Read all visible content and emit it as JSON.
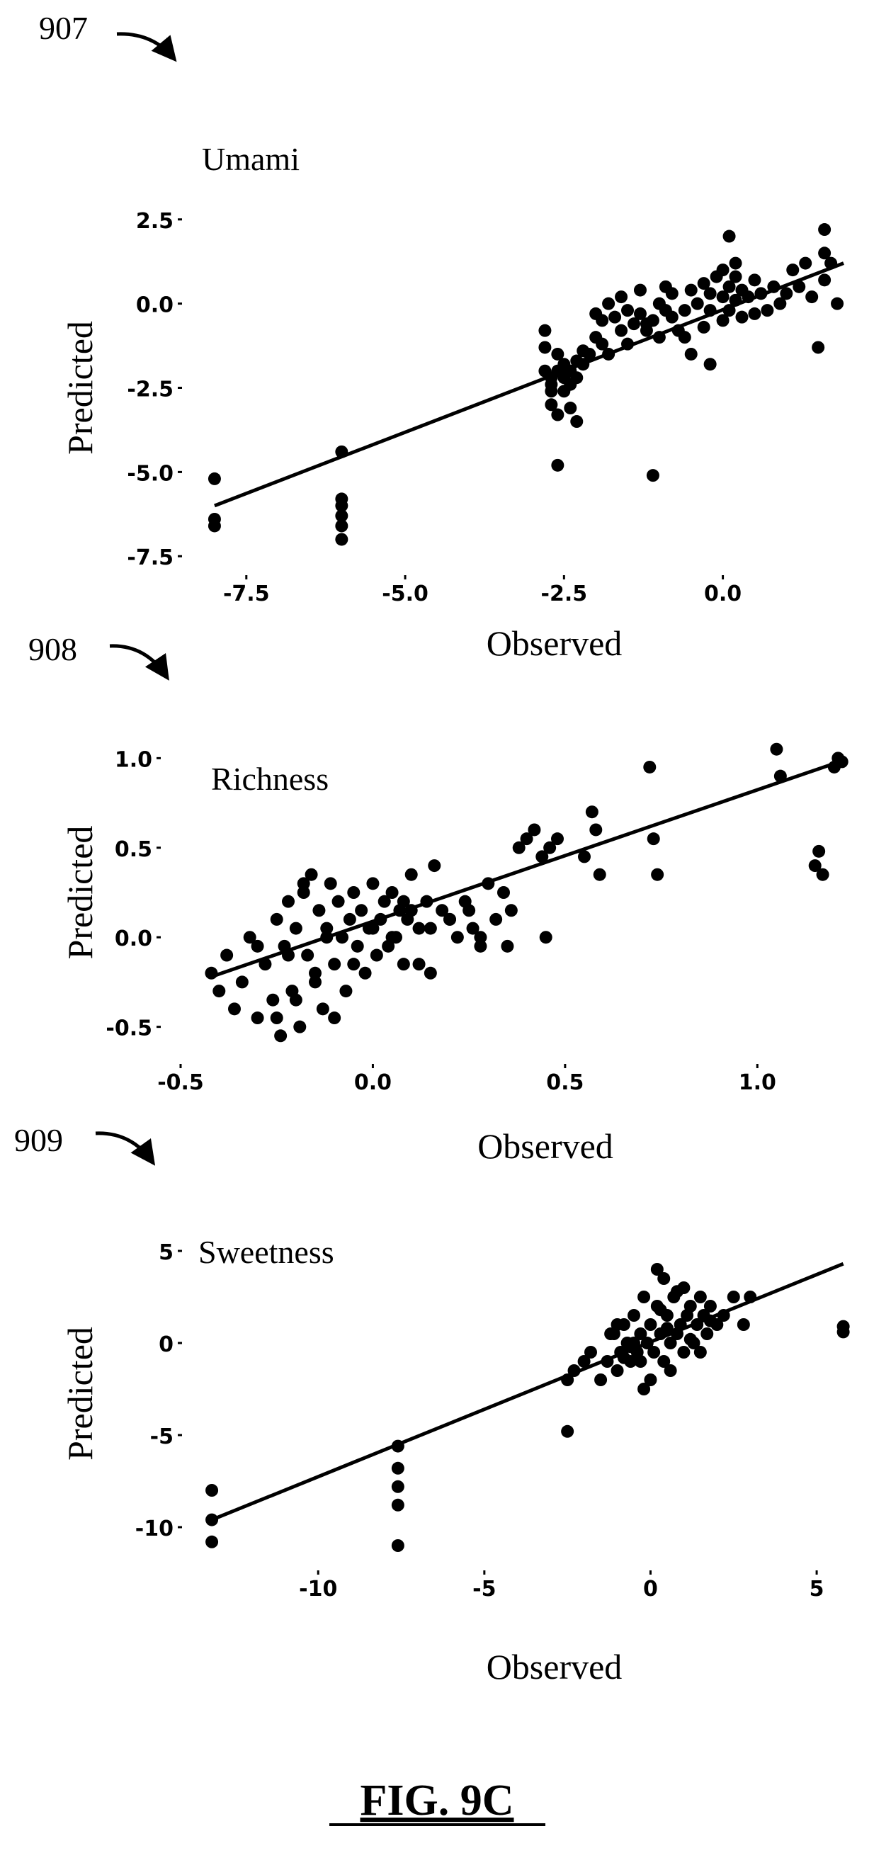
{
  "figure_label": "FIG. 9C",
  "colors": {
    "ink": "#000000",
    "background": "#ffffff"
  },
  "chart_data": [
    {
      "type": "scatter",
      "reference": "907",
      "title": "Umami",
      "xlabel": "Observed",
      "ylabel": "Predicted",
      "xlim": [
        -8.2,
        2.0
      ],
      "ylim": [
        -7.6,
        2.6
      ],
      "xticks": [
        "-7.5",
        "-5.0",
        "-2.5",
        "0.0"
      ],
      "yticks": [
        "2.5",
        "0.0",
        "-2.5",
        "-5.0",
        "-7.5"
      ],
      "xtick_values": [
        -7.5,
        -5.0,
        -2.5,
        0.0
      ],
      "ytick_values": [
        2.5,
        0.0,
        -2.5,
        -5.0,
        -7.5
      ],
      "fit_line": {
        "x": [
          -8.0,
          1.9
        ],
        "y": [
          -6.0,
          1.2
        ]
      },
      "points": {
        "x": [
          -8.0,
          -8.0,
          -8.0,
          -6.0,
          -6.0,
          -6.0,
          -6.0,
          -6.0,
          -6.0,
          -2.8,
          -2.8,
          -2.8,
          -2.7,
          -2.7,
          -2.7,
          -2.7,
          -2.6,
          -2.6,
          -2.6,
          -2.5,
          -2.5,
          -2.5,
          -2.4,
          -2.4,
          -2.3,
          -2.3,
          -2.3,
          -2.2,
          -2.2,
          -2.1,
          -2.0,
          -2.0,
          -1.9,
          -1.9,
          -1.8,
          -1.8,
          -1.7,
          -1.6,
          -1.6,
          -1.5,
          -1.5,
          -1.4,
          -1.3,
          -1.3,
          -1.2,
          -1.1,
          -1.0,
          -1.0,
          -0.9,
          -0.9,
          -0.8,
          -0.8,
          -0.7,
          -0.6,
          -0.5,
          -0.5,
          -0.4,
          -0.3,
          -0.3,
          -0.2,
          -0.2,
          -0.1,
          0.0,
          0.0,
          0.0,
          0.1,
          0.1,
          0.2,
          0.2,
          0.3,
          0.3,
          0.4,
          0.5,
          0.5,
          0.6,
          0.7,
          0.8,
          0.9,
          1.0,
          1.1,
          1.2,
          1.3,
          1.4,
          1.5,
          1.6,
          1.7,
          -2.6,
          -1.1,
          0.1,
          1.6,
          1.6,
          1.8,
          -0.2,
          0.2,
          -1.2,
          -0.6,
          -2.4
        ],
        "y": [
          -5.2,
          -6.4,
          -6.6,
          -4.4,
          -5.8,
          -6.0,
          -6.3,
          -6.6,
          -7.0,
          -0.8,
          -1.3,
          -2.0,
          -2.2,
          -2.4,
          -2.6,
          -3.0,
          -3.3,
          -2.0,
          -1.5,
          -1.8,
          -2.2,
          -2.6,
          -2.4,
          -3.1,
          -1.7,
          -2.2,
          -3.5,
          -1.4,
          -1.8,
          -1.5,
          -1.0,
          -0.3,
          -1.2,
          -0.5,
          0.0,
          -1.5,
          -0.4,
          -0.8,
          0.2,
          -1.2,
          -0.2,
          -0.6,
          -0.3,
          0.4,
          -0.8,
          -0.5,
          0.0,
          -1.0,
          -0.2,
          0.5,
          -0.4,
          0.3,
          -0.8,
          -0.2,
          0.4,
          -1.5,
          0.0,
          -0.7,
          0.6,
          -0.2,
          0.3,
          0.8,
          -0.5,
          0.2,
          1.0,
          0.5,
          -0.2,
          0.8,
          0.1,
          0.4,
          -0.4,
          0.2,
          0.7,
          -0.3,
          0.3,
          -0.2,
          0.5,
          0.0,
          0.3,
          1.0,
          0.5,
          1.2,
          0.2,
          -1.3,
          1.5,
          1.2,
          -4.8,
          -5.1,
          2.0,
          2.2,
          0.7,
          0.0,
          -1.8,
          1.2,
          -0.6,
          -1.0,
          -2.0
        ]
      }
    },
    {
      "type": "scatter",
      "reference": "908",
      "title": "Richness",
      "xlabel": "Observed",
      "ylabel": "Predicted",
      "xlim": [
        -0.5,
        1.25
      ],
      "ylim": [
        -0.62,
        1.12
      ],
      "xticks": [
        "-0.5",
        "0.0",
        "0.5",
        "1.0"
      ],
      "yticks": [
        "1.0",
        "0.5",
        "0.0",
        "-0.5"
      ],
      "xtick_values": [
        -0.5,
        0.0,
        0.5,
        1.0
      ],
      "ytick_values": [
        1.0,
        0.5,
        0.0,
        -0.5
      ],
      "fit_line": {
        "x": [
          -0.42,
          1.2
        ],
        "y": [
          -0.22,
          0.97
        ]
      },
      "points": {
        "x": [
          -0.42,
          -0.4,
          -0.38,
          -0.36,
          -0.34,
          -0.32,
          -0.3,
          -0.28,
          -0.26,
          -0.25,
          -0.24,
          -0.23,
          -0.22,
          -0.21,
          -0.2,
          -0.19,
          -0.18,
          -0.17,
          -0.16,
          -0.15,
          -0.14,
          -0.13,
          -0.12,
          -0.11,
          -0.1,
          -0.09,
          -0.08,
          -0.07,
          -0.06,
          -0.05,
          -0.04,
          -0.03,
          -0.02,
          -0.01,
          0.0,
          0.01,
          0.02,
          0.03,
          0.04,
          0.05,
          0.06,
          0.07,
          0.08,
          0.09,
          0.1,
          0.12,
          0.14,
          0.15,
          0.16,
          0.18,
          0.2,
          0.22,
          0.24,
          0.26,
          0.28,
          0.3,
          0.32,
          0.34,
          0.36,
          0.38,
          0.4,
          0.42,
          0.44,
          0.46,
          0.48,
          0.55,
          0.57,
          0.58,
          0.59,
          0.72,
          0.73,
          0.74,
          1.05,
          1.06,
          1.15,
          1.16,
          1.17,
          1.2,
          1.21,
          1.22,
          -0.25,
          -0.2,
          -0.15,
          -0.1,
          -0.05,
          0.0,
          0.05,
          0.1,
          0.15,
          0.2,
          -0.3,
          -0.22,
          -0.18,
          -0.12,
          0.08,
          0.12,
          0.25,
          0.35,
          0.45,
          0.28
        ],
        "y": [
          -0.2,
          -0.3,
          -0.1,
          -0.4,
          -0.25,
          0.0,
          -0.45,
          -0.15,
          -0.35,
          0.1,
          -0.55,
          -0.05,
          0.2,
          -0.3,
          0.05,
          -0.5,
          0.25,
          -0.1,
          0.35,
          -0.2,
          0.15,
          -0.4,
          0.05,
          0.3,
          -0.15,
          0.2,
          0.0,
          -0.3,
          0.1,
          0.25,
          -0.05,
          0.15,
          -0.2,
          0.05,
          0.3,
          -0.1,
          0.1,
          0.2,
          -0.05,
          0.25,
          0.0,
          0.15,
          -0.15,
          0.1,
          0.35,
          0.05,
          0.2,
          -0.2,
          0.4,
          0.15,
          0.1,
          0.0,
          0.2,
          0.05,
          -0.05,
          0.3,
          0.1,
          0.25,
          0.15,
          0.5,
          0.55,
          0.6,
          0.45,
          0.5,
          0.55,
          0.45,
          0.7,
          0.6,
          0.35,
          0.95,
          0.55,
          0.35,
          1.05,
          0.9,
          0.4,
          0.48,
          0.35,
          0.95,
          1.0,
          0.98,
          -0.45,
          -0.35,
          -0.25,
          -0.45,
          -0.15,
          0.05,
          0.0,
          0.15,
          0.05,
          0.1,
          -0.05,
          -0.1,
          0.3,
          0.0,
          0.2,
          -0.15,
          0.15,
          -0.05,
          0.0,
          0.0
        ]
      }
    },
    {
      "type": "scatter",
      "reference": "909",
      "title": "Sweetness",
      "xlabel": "Observed",
      "ylabel": "Predicted",
      "xlim": [
        -13.5,
        6.0
      ],
      "ylim": [
        -11.5,
        6.0
      ],
      "xticks": [
        "-10",
        "-5",
        "0",
        "5"
      ],
      "yticks": [
        "5",
        "0",
        "-5",
        "-10"
      ],
      "xtick_values": [
        -10,
        -5,
        0,
        5
      ],
      "ytick_values": [
        5,
        0,
        -5,
        -10
      ],
      "fit_line": {
        "x": [
          -13.2,
          5.8
        ],
        "y": [
          -9.6,
          4.3
        ]
      },
      "points": {
        "x": [
          -13.2,
          -13.2,
          -13.2,
          -7.6,
          -7.6,
          -7.6,
          -7.6,
          -7.6,
          -2.5,
          -2.5,
          -2.3,
          -2.0,
          -1.8,
          -1.5,
          -1.3,
          -1.2,
          -1.0,
          -0.9,
          -0.8,
          -0.7,
          -0.6,
          -0.5,
          -0.4,
          -0.3,
          -0.2,
          -0.1,
          0.0,
          0.1,
          0.2,
          0.3,
          0.4,
          0.5,
          0.6,
          0.7,
          0.8,
          0.9,
          1.0,
          1.1,
          1.2,
          1.3,
          1.4,
          1.5,
          1.6,
          1.7,
          1.8,
          2.0,
          2.2,
          2.5,
          2.8,
          3.0,
          5.8,
          5.8,
          0.2,
          0.4,
          1.0,
          -0.5,
          -0.3,
          0.6,
          -1.0,
          1.5,
          -0.2,
          0.0,
          0.3,
          -0.8,
          0.8,
          1.2,
          -0.6,
          0.5,
          -1.1,
          1.8
        ],
        "y": [
          -8.0,
          -9.6,
          -10.8,
          -5.6,
          -6.8,
          -7.8,
          -8.8,
          -11.0,
          -4.8,
          -2.0,
          -1.5,
          -1.0,
          -0.5,
          -2.0,
          -1.0,
          0.5,
          -1.5,
          -0.5,
          1.0,
          0.0,
          -1.0,
          1.5,
          -0.5,
          0.5,
          -2.5,
          0.0,
          1.0,
          -0.5,
          2.0,
          0.5,
          -1.0,
          1.5,
          0.0,
          2.5,
          0.5,
          1.0,
          -0.5,
          1.5,
          2.0,
          0.0,
          1.0,
          2.5,
          1.5,
          0.5,
          2.0,
          1.0,
          1.5,
          2.5,
          1.0,
          2.5,
          0.6,
          0.9,
          4.0,
          3.5,
          3.0,
          0.0,
          -1.0,
          -1.5,
          1.0,
          -0.5,
          2.5,
          -2.0,
          1.8,
          -0.8,
          2.8,
          0.2,
          -0.2,
          0.8,
          0.5,
          1.2
        ]
      }
    }
  ]
}
